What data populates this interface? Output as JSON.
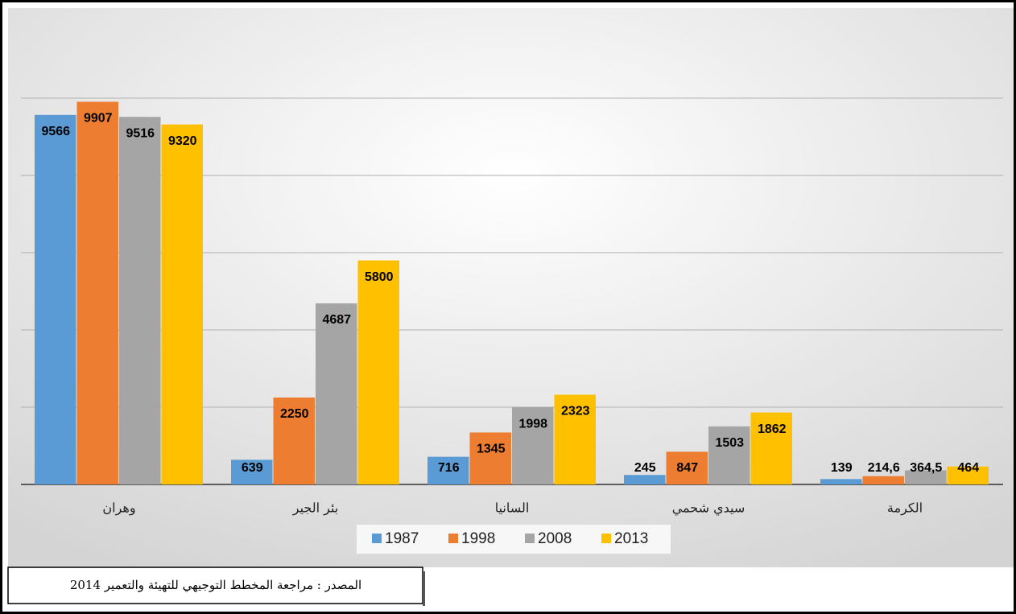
{
  "chart_data": {
    "type": "bar",
    "categories": [
      "وهران",
      "بئر الجير",
      "السانيا",
      "سيدي شحمي",
      "الكرمة"
    ],
    "series": [
      {
        "name": "1987",
        "color": "#5b9bd5",
        "values": [
          9566,
          639,
          716,
          245,
          139
        ]
      },
      {
        "name": "1998",
        "color": "#ed7d31",
        "values": [
          9907,
          2250,
          1345,
          847,
          214.6
        ],
        "value_labels": [
          "9907",
          "2250",
          "1345",
          "847",
          "214,6"
        ]
      },
      {
        "name": "2008",
        "color": "#a5a5a5",
        "values": [
          9516,
          4687,
          1998,
          1503,
          364.5
        ],
        "value_labels": [
          "9516",
          "4687",
          "1998",
          "1503",
          "364,5"
        ]
      },
      {
        "name": "2013",
        "color": "#ffc000",
        "values": [
          9320,
          5800,
          2323,
          1862,
          464
        ]
      }
    ],
    "ylim": [
      0,
      12000
    ],
    "yticks": [
      0,
      2000,
      4000,
      6000,
      8000,
      10000
    ],
    "grid": true,
    "legend": "bottom",
    "source": "المصدر : مراجعة المخطط التوجيهي للتهيئة والتعمير 2014"
  }
}
